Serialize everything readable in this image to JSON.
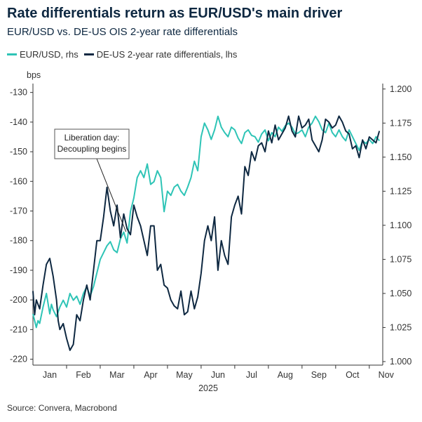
{
  "chart_data": {
    "type": "line",
    "title": "Rate differentials return as EUR/USD's main driver",
    "subtitle": "EUR/USD vs. DE-US OIS 2-year rate differentials",
    "source": "Source: Convera, Macrobond",
    "left_axis_unit": "bps",
    "x_month_labels": [
      "Jan",
      "Feb",
      "Mar",
      "Apr",
      "May",
      "Jun",
      "Jul",
      "Aug",
      "Sep",
      "Oct",
      "Nov"
    ],
    "x_year_label": "2025",
    "x_range": [
      0,
      10.4
    ],
    "left_ylim": [
      -222,
      -127
    ],
    "left_ticks": [
      -130,
      -140,
      -150,
      -160,
      -170,
      -180,
      -190,
      -200,
      -210,
      -220
    ],
    "right_ylim": [
      0.9974,
      1.204
    ],
    "right_ticks": [
      "1.200",
      "1.175",
      "1.150",
      "1.125",
      "1.100",
      "1.075",
      "1.050",
      "1.025",
      "1.000"
    ],
    "right_tick_values": [
      1.2,
      1.175,
      1.15,
      1.125,
      1.1,
      1.075,
      1.05,
      1.025,
      1.0
    ],
    "annotation": {
      "lines": [
        "Liberation day:",
        "Decoupling begins"
      ],
      "x": 2.6,
      "y_lhs": -177
    },
    "grid": false,
    "series": [
      {
        "name": "EUR/USD, rhs",
        "axis": "right",
        "color": "#2ec4b6",
        "x": [
          0.0,
          0.05,
          0.1,
          0.15,
          0.2,
          0.3,
          0.4,
          0.5,
          0.55,
          0.6,
          0.7,
          0.8,
          0.9,
          1.0,
          1.1,
          1.2,
          1.3,
          1.4,
          1.5,
          1.6,
          1.7,
          1.8,
          1.9,
          2.0,
          2.1,
          2.2,
          2.3,
          2.4,
          2.5,
          2.6,
          2.7,
          2.8,
          2.9,
          3.0,
          3.1,
          3.2,
          3.3,
          3.4,
          3.5,
          3.6,
          3.7,
          3.8,
          3.9,
          4.0,
          4.1,
          4.2,
          4.3,
          4.4,
          4.5,
          4.6,
          4.7,
          4.8,
          4.9,
          5.0,
          5.1,
          5.2,
          5.3,
          5.4,
          5.5,
          5.6,
          5.7,
          5.8,
          5.9,
          6.0,
          6.1,
          6.2,
          6.3,
          6.4,
          6.5,
          6.6,
          6.7,
          6.8,
          6.9,
          7.0,
          7.1,
          7.2,
          7.3,
          7.4,
          7.5,
          7.6,
          7.7,
          7.8,
          7.9,
          8.0,
          8.1,
          8.2,
          8.3,
          8.4,
          8.5,
          8.6,
          8.7,
          8.8,
          8.9,
          9.0,
          9.1,
          9.2,
          9.3,
          9.4,
          9.5,
          9.6,
          9.7,
          9.8,
          9.9,
          10.0,
          10.1,
          10.2,
          10.3
        ],
        "values": [
          1.035,
          1.03,
          1.025,
          1.03,
          1.028,
          1.04,
          1.05,
          1.035,
          1.042,
          1.038,
          1.033,
          1.04,
          1.045,
          1.04,
          1.05,
          1.045,
          1.048,
          1.042,
          1.05,
          1.055,
          1.048,
          1.055,
          1.065,
          1.075,
          1.08,
          1.085,
          1.088,
          1.082,
          1.08,
          1.09,
          1.095,
          1.087,
          1.11,
          1.12,
          1.135,
          1.14,
          1.135,
          1.145,
          1.13,
          1.132,
          1.14,
          1.135,
          1.11,
          1.125,
          1.122,
          1.128,
          1.13,
          1.125,
          1.122,
          1.128,
          1.135,
          1.147,
          1.14,
          1.165,
          1.175,
          1.17,
          1.163,
          1.17,
          1.18,
          1.172,
          1.168,
          1.165,
          1.172,
          1.17,
          1.164,
          1.16,
          1.168,
          1.17,
          1.166,
          1.165,
          1.161,
          1.167,
          1.17,
          1.162,
          1.168,
          1.165,
          1.172,
          1.169,
          1.173,
          1.175,
          1.172,
          1.167,
          1.168,
          1.17,
          1.165,
          1.172,
          1.175,
          1.18,
          1.176,
          1.17,
          1.168,
          1.175,
          1.168,
          1.165,
          1.17,
          1.165,
          1.162,
          1.17,
          1.165,
          1.16,
          1.155,
          1.162,
          1.16,
          1.163,
          1.16,
          1.165,
          1.162
        ]
      },
      {
        "name": "DE-US 2-year rate differentials, lhs",
        "axis": "left",
        "color": "#0e2841",
        "x": [
          0.0,
          0.05,
          0.1,
          0.2,
          0.3,
          0.4,
          0.5,
          0.6,
          0.7,
          0.75,
          0.8,
          0.9,
          1.0,
          1.1,
          1.2,
          1.3,
          1.4,
          1.5,
          1.6,
          1.7,
          1.8,
          1.9,
          2.0,
          2.05,
          2.1,
          2.2,
          2.3,
          2.4,
          2.5,
          2.6,
          2.7,
          2.8,
          2.9,
          3.0,
          3.1,
          3.2,
          3.3,
          3.4,
          3.5,
          3.6,
          3.7,
          3.8,
          3.9,
          4.0,
          4.1,
          4.2,
          4.3,
          4.4,
          4.5,
          4.6,
          4.7,
          4.8,
          4.9,
          5.0,
          5.1,
          5.2,
          5.3,
          5.4,
          5.5,
          5.6,
          5.7,
          5.8,
          5.9,
          6.0,
          6.1,
          6.2,
          6.3,
          6.4,
          6.5,
          6.6,
          6.7,
          6.8,
          6.9,
          7.0,
          7.1,
          7.2,
          7.3,
          7.4,
          7.5,
          7.6,
          7.7,
          7.8,
          7.9,
          8.0,
          8.1,
          8.2,
          8.3,
          8.4,
          8.5,
          8.6,
          8.7,
          8.8,
          8.9,
          9.0,
          9.1,
          9.2,
          9.3,
          9.4,
          9.5,
          9.6,
          9.7,
          9.8,
          9.9,
          10.0,
          10.1,
          10.2,
          10.3
        ],
        "values": [
          -197,
          -205,
          -200,
          -203,
          -195,
          -188,
          -186,
          -192,
          -200,
          -207,
          -210,
          -208,
          -213,
          -217,
          -215,
          -205,
          -207,
          -200,
          -195,
          -200,
          -190,
          -180,
          -180,
          -176,
          -172,
          -162,
          -170,
          -175,
          -168,
          -179,
          -171,
          -176,
          -178,
          -168,
          -172,
          -175,
          -180,
          -185,
          -175,
          -175,
          -190,
          -188,
          -195,
          -196,
          -200,
          -202,
          -203,
          -197,
          -205,
          -204,
          -197,
          -203,
          -199,
          -191,
          -180,
          -175,
          -180,
          -172,
          -190,
          -180,
          -185,
          -188,
          -172,
          -168,
          -165,
          -171,
          -155,
          -158,
          -150,
          -153,
          -148,
          -147,
          -150,
          -143,
          -147,
          -141,
          -146,
          -144,
          -142,
          -138,
          -143,
          -145,
          -138,
          -142,
          -141,
          -139,
          -146,
          -148,
          -150,
          -146,
          -139,
          -140,
          -142,
          -141,
          -138,
          -140,
          -143,
          -144,
          -149,
          -148,
          -152,
          -146,
          -149,
          -145,
          -146,
          -147,
          -143
        ]
      }
    ]
  }
}
